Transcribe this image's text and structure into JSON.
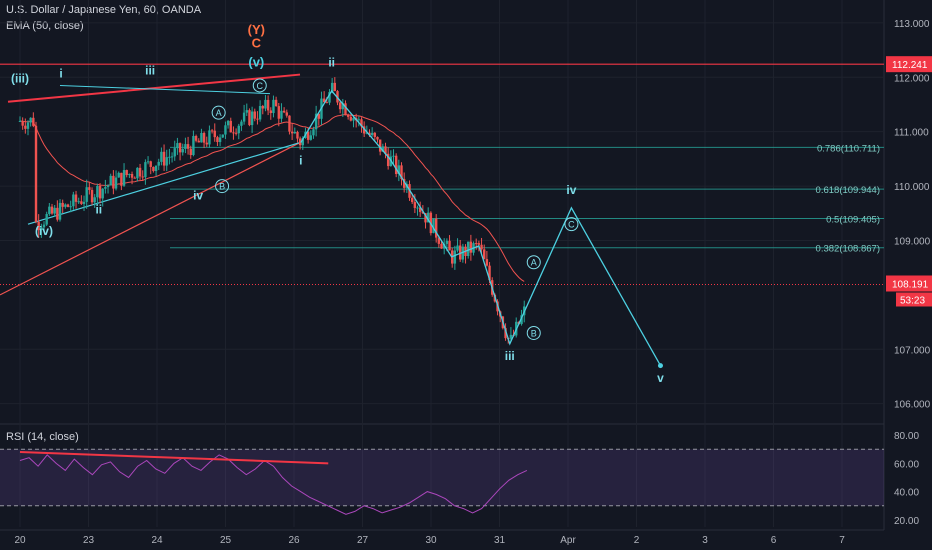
{
  "header": {
    "symbol": "U.S. Dollar / Japanese Yen, 60, OANDA",
    "indicator": "EMA (50, close)"
  },
  "chart_data": {
    "type": "line",
    "main_pane": {
      "price_axis_ticks": [
        "113.000",
        "112.000",
        "111.000",
        "110.000",
        "109.000",
        "107.000",
        "106.000"
      ],
      "ylim": [
        105.7,
        113.2
      ],
      "current_price": "108.191",
      "current_price_label_color": "#f23645",
      "countdown": "53:23",
      "resistance_price": "112.241",
      "resistance_color": "#f23645",
      "fib_levels": [
        {
          "label": "0.786(110.711)",
          "price": 110.711
        },
        {
          "label": "0.618(109.944)",
          "price": 109.944
        },
        {
          "label": "0.5(109.405)",
          "price": 109.405
        },
        {
          "label": "0.382(108.867)",
          "price": 108.867
        }
      ],
      "price_series_color": "#26a69a",
      "ema_color": "#f05350",
      "wave_color": "#4dd0e1",
      "wave_points": [
        {
          "t": 0.2,
          "p": 109.3
        },
        {
          "t": 1.55,
          "p": 110.2
        },
        {
          "t": 2.8,
          "p": 110.9
        },
        {
          "t": 3.7,
          "p": 111.5
        },
        {
          "t": 4.1,
          "p": 110.8
        },
        {
          "t": 4.55,
          "p": 111.75
        },
        {
          "t": 5.4,
          "p": 110.5
        },
        {
          "t": 6.3,
          "p": 108.7
        },
        {
          "t": 6.7,
          "p": 108.9
        },
        {
          "t": 7.15,
          "p": 107.1
        },
        {
          "t": 8.05,
          "p": 109.6
        },
        {
          "t": 9.35,
          "p": 106.7
        }
      ],
      "wave_labels": [
        {
          "text": "(iii)",
          "t": 0.0,
          "p": 111.9
        },
        {
          "text": "i",
          "t": 0.6,
          "p": 112.0
        },
        {
          "text": "ii",
          "t": 1.15,
          "p": 109.5
        },
        {
          "text": "iii",
          "t": 1.9,
          "p": 112.05
        },
        {
          "text": "iv",
          "t": 2.6,
          "p": 109.75
        },
        {
          "text": "(iv)",
          "t": 0.35,
          "p": 109.1
        },
        {
          "text": "i",
          "t": 4.1,
          "p": 110.4
        },
        {
          "text": "ii",
          "t": 4.55,
          "p": 112.2
        },
        {
          "text": "iii",
          "t": 7.15,
          "p": 106.8
        },
        {
          "text": "iv",
          "t": 8.05,
          "p": 109.85
        },
        {
          "text": "v",
          "t": 9.35,
          "p": 106.4
        }
      ],
      "circled_labels": [
        {
          "text": "A",
          "t": 2.9,
          "p": 111.35
        },
        {
          "text": "B",
          "t": 2.95,
          "p": 110.0
        },
        {
          "text": "C",
          "t": 3.5,
          "p": 111.85
        },
        {
          "text": "A",
          "t": 7.5,
          "p": 108.6
        },
        {
          "text": "B",
          "t": 7.5,
          "p": 107.3
        },
        {
          "text": "C",
          "t": 8.05,
          "p": 109.3
        }
      ],
      "top_labels": [
        {
          "text": "(Y)",
          "t": 3.45,
          "p": 112.8,
          "color": "#ff7043"
        },
        {
          "text": "C",
          "t": 3.45,
          "p": 112.55,
          "color": "#ff7043"
        },
        {
          "text": "(v)",
          "t": 3.45,
          "p": 112.2,
          "color": "#4dd0e1"
        }
      ]
    },
    "rsi_pane": {
      "label": "RSI (14, close)",
      "ticks": [
        "80.00",
        "60.00",
        "40.00",
        "20.00"
      ],
      "ylim": [
        15,
        85
      ],
      "upper_band": 70,
      "lower_band": 30,
      "band_fill": "#7e57c2",
      "line_color": "#ab47bc",
      "values": [
        62,
        64,
        58,
        66,
        60,
        55,
        63,
        57,
        52,
        59,
        61,
        54,
        50,
        58,
        62,
        56,
        53,
        60,
        64,
        58,
        55,
        61,
        66,
        63,
        57,
        52,
        56,
        62,
        58,
        50,
        44,
        40,
        36,
        33,
        30,
        27,
        24,
        26,
        30,
        28,
        25,
        27,
        29,
        32,
        36,
        40,
        38,
        35,
        30,
        28,
        25,
        28,
        35,
        42,
        48,
        52,
        55
      ],
      "divergence_line": {
        "from": [
          0.0,
          68
        ],
        "to": [
          4.5,
          60
        ],
        "color": "#f23645"
      }
    },
    "time_axis": {
      "ticks": [
        {
          "label": "20",
          "t": 0.0
        },
        {
          "label": "23",
          "t": 1.0
        },
        {
          "label": "24",
          "t": 2.0
        },
        {
          "label": "25",
          "t": 3.0
        },
        {
          "label": "26",
          "t": 4.0
        },
        {
          "label": "27",
          "t": 5.0
        },
        {
          "label": "30",
          "t": 6.0
        },
        {
          "label": "31",
          "t": 7.0
        },
        {
          "label": "Apr",
          "t": 8.0
        },
        {
          "label": "2",
          "t": 9.0
        },
        {
          "label": "3",
          "t": 10.0
        },
        {
          "label": "6",
          "t": 11.0
        },
        {
          "label": "7",
          "t": 12.0
        }
      ]
    }
  }
}
